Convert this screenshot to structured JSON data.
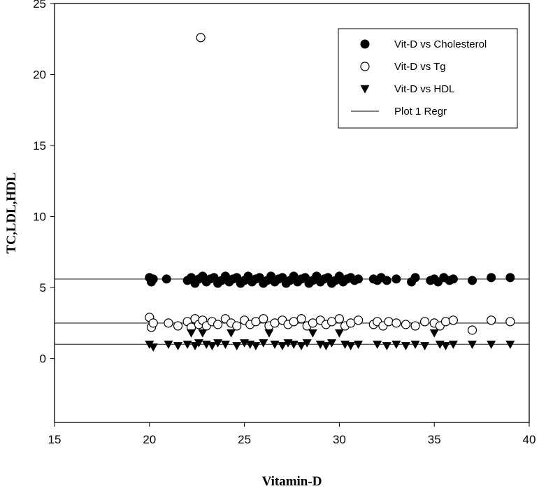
{
  "chart_data": {
    "type": "scatter",
    "xlabel": "Vitamin-D",
    "ylabel": "TC,LDL,HDL",
    "xlim": [
      15,
      40
    ],
    "ylim": [
      -4.5,
      25
    ],
    "x_ticks": [
      15,
      20,
      25,
      30,
      35,
      40
    ],
    "y_ticks": [
      0,
      5,
      10,
      15,
      20,
      25
    ],
    "legend_position": "top-right",
    "series": [
      {
        "name": "Vit-D vs Cholesterol",
        "marker": "filled-circle",
        "x": [
          20,
          20.1,
          20.2,
          20.9,
          22,
          22.2,
          22.4,
          22.6,
          22.8,
          23,
          23.2,
          23.4,
          23.6,
          23.8,
          24,
          24.2,
          24.4,
          24.6,
          24.8,
          25,
          25.2,
          25.4,
          25.6,
          25.8,
          26,
          26.2,
          26.4,
          26.6,
          26.8,
          27,
          27.2,
          27.4,
          27.6,
          27.8,
          28,
          28.2,
          28.4,
          28.6,
          28.8,
          29,
          29.2,
          29.4,
          29.6,
          29.8,
          30,
          30.2,
          30.4,
          30.6,
          30.8,
          31,
          31.8,
          32,
          32.2,
          32.5,
          33,
          33.8,
          34,
          34.8,
          35,
          35.2,
          35.5,
          35.8,
          36,
          37,
          38,
          39
        ],
        "y": [
          5.7,
          5.4,
          5.6,
          5.6,
          5.5,
          5.7,
          5.3,
          5.6,
          5.8,
          5.4,
          5.6,
          5.7,
          5.3,
          5.5,
          5.8,
          5.4,
          5.6,
          5.7,
          5.3,
          5.5,
          5.8,
          5.4,
          5.6,
          5.7,
          5.3,
          5.5,
          5.8,
          5.4,
          5.6,
          5.7,
          5.3,
          5.5,
          5.8,
          5.4,
          5.6,
          5.7,
          5.3,
          5.5,
          5.8,
          5.4,
          5.6,
          5.7,
          5.3,
          5.5,
          5.8,
          5.4,
          5.6,
          5.7,
          5.5,
          5.6,
          5.6,
          5.5,
          5.7,
          5.5,
          5.6,
          5.4,
          5.7,
          5.5,
          5.6,
          5.4,
          5.7,
          5.5,
          5.6,
          5.5,
          5.7,
          5.7
        ]
      },
      {
        "name": "Vit-D vs Tg",
        "marker": "open-circle",
        "x": [
          20,
          20.1,
          20.2,
          21,
          21.5,
          22,
          22.2,
          22.4,
          22.6,
          22.7,
          22.8,
          23,
          23.3,
          23.6,
          24,
          24.3,
          24.6,
          25,
          25.3,
          25.6,
          26,
          26.3,
          26.6,
          27,
          27.3,
          27.6,
          28,
          28.3,
          28.6,
          29,
          29.3,
          29.6,
          30,
          30.3,
          30.6,
          31,
          31.8,
          32,
          32.3,
          32.6,
          33,
          33.5,
          34,
          34.5,
          35,
          35.3,
          35.6,
          36,
          37,
          38,
          39
        ],
        "y": [
          2.9,
          2.2,
          2.5,
          2.5,
          2.3,
          2.6,
          2.2,
          2.8,
          2.4,
          22.6,
          2.7,
          2.3,
          2.6,
          2.4,
          2.8,
          2.5,
          2.3,
          2.7,
          2.4,
          2.6,
          2.8,
          2.3,
          2.5,
          2.7,
          2.4,
          2.6,
          2.8,
          2.3,
          2.5,
          2.7,
          2.4,
          2.6,
          2.8,
          2.3,
          2.5,
          2.7,
          2.4,
          2.6,
          2.3,
          2.6,
          2.5,
          2.4,
          2.3,
          2.6,
          2.5,
          2.3,
          2.6,
          2.7,
          2.0,
          2.7,
          2.6
        ]
      },
      {
        "name": "Vit-D vs HDL",
        "marker": "filled-triangle-down",
        "x": [
          20,
          20.2,
          21,
          21.5,
          22,
          22.2,
          22.4,
          22.6,
          22.8,
          23,
          23.3,
          23.6,
          24,
          24.3,
          24.6,
          25,
          25.3,
          25.6,
          26,
          26.3,
          26.6,
          27,
          27.3,
          27.6,
          28,
          28.3,
          28.6,
          29,
          29.3,
          29.6,
          30,
          30.3,
          30.6,
          31,
          32,
          32.5,
          33,
          33.5,
          34,
          34.5,
          35,
          35.3,
          35.6,
          36,
          37,
          38,
          39
        ],
        "y": [
          1.0,
          0.8,
          1.0,
          0.9,
          1.0,
          1.8,
          0.9,
          1.1,
          1.8,
          1.0,
          0.9,
          1.1,
          1.0,
          1.8,
          0.9,
          1.1,
          1.0,
          0.9,
          1.1,
          1.8,
          1.0,
          0.9,
          1.1,
          1.0,
          0.9,
          1.1,
          1.8,
          1.0,
          0.9,
          1.1,
          1.8,
          1.0,
          0.9,
          1.0,
          1.0,
          0.9,
          1.0,
          0.9,
          1.0,
          0.9,
          1.8,
          1.0,
          0.9,
          1.0,
          1.0,
          1.0,
          1.0
        ]
      },
      {
        "name": "Plot 1 Regr",
        "marker": "line",
        "lines": [
          {
            "x": [
              15,
              40
            ],
            "y": [
              5.6,
              5.6
            ]
          },
          {
            "x": [
              15,
              40
            ],
            "y": [
              2.5,
              2.5
            ]
          },
          {
            "x": [
              15,
              40
            ],
            "y": [
              1.0,
              1.0
            ]
          }
        ]
      }
    ]
  }
}
